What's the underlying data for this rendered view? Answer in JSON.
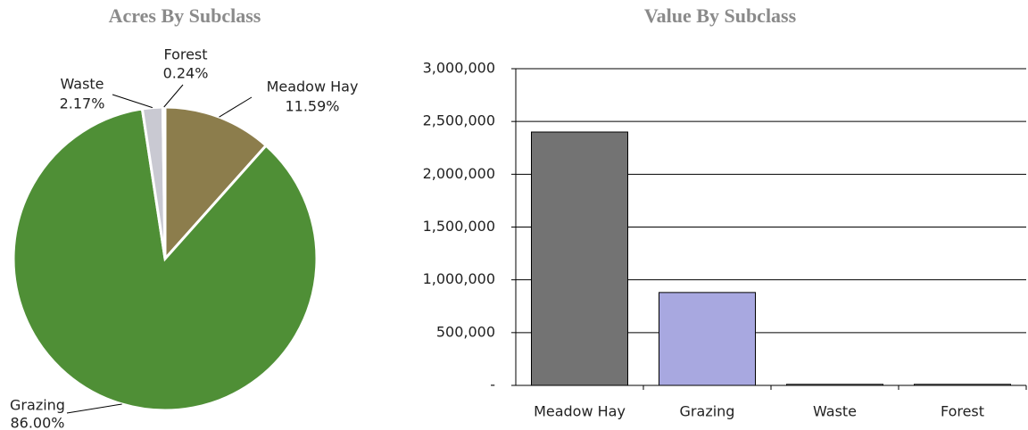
{
  "chart_data": [
    {
      "type": "pie",
      "title": "Acres By Subclass",
      "categories": [
        "Meadow Hay",
        "Grazing",
        "Waste",
        "Forest"
      ],
      "values": [
        11.59,
        86.0,
        2.17,
        0.24
      ],
      "value_labels": [
        "11.59%",
        "86.00%",
        "2.17%",
        "0.24%"
      ],
      "colors": [
        "#8c7d4c",
        "#4f8f36",
        "#c9c9d2",
        "#e4e4ea"
      ]
    },
    {
      "type": "bar",
      "title": "Value By Subclass",
      "categories": [
        "Meadow Hay",
        "Grazing",
        "Waste",
        "Forest"
      ],
      "values": [
        2400000,
        880000,
        10000,
        10000
      ],
      "colors": [
        "#737373",
        "#a8a8e0",
        "#ffffff",
        "#ffffff"
      ],
      "ylim": [
        0,
        3000000
      ],
      "yticks": [
        {
          "value": 0,
          "label": "-"
        },
        {
          "value": 500000,
          "label": "500,000"
        },
        {
          "value": 1000000,
          "label": "1,000,000"
        },
        {
          "value": 1500000,
          "label": "1,500,000"
        },
        {
          "value": 2000000,
          "label": "2,000,000"
        },
        {
          "value": 2500000,
          "label": "2,500,000"
        },
        {
          "value": 3000000,
          "label": "3,000,000"
        }
      ],
      "grid": true
    }
  ]
}
